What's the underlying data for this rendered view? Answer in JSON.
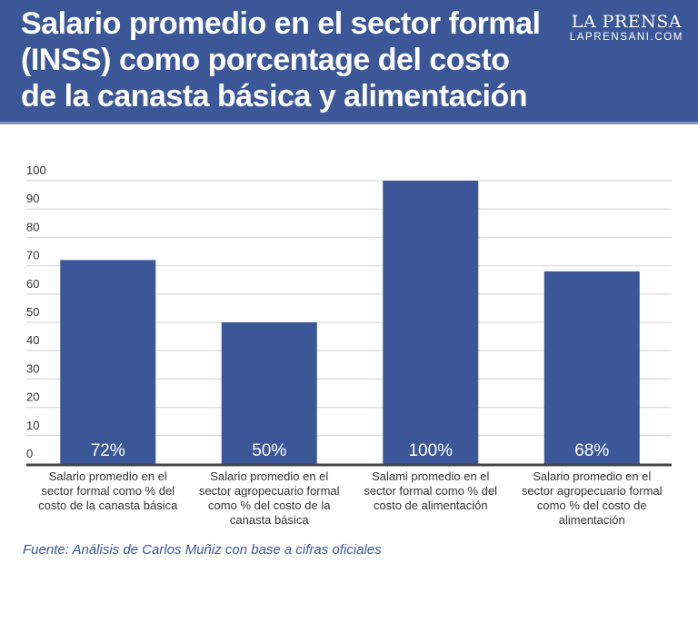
{
  "header": {
    "title_lines": [
      "Salario promedio en el sector formal",
      "(INSS) como porcentage del costo",
      "de la canasta básica y alimentación"
    ],
    "brand_name": "LA PRENSA",
    "brand_url": "LAPRENSANI.COM"
  },
  "colors": {
    "header_bg": "#3b5798",
    "bar": "#3b5798",
    "source_text": "#3b5798",
    "gridline": "#e0e0e0",
    "axis": "#444444"
  },
  "chart_data": {
    "type": "bar",
    "title": "Salario promedio en el sector formal (INSS) como porcentage del costo de la canasta básica y alimentación",
    "xlabel": "",
    "ylabel": "",
    "ylim": [
      0,
      100
    ],
    "yticks": [
      0,
      10,
      20,
      30,
      40,
      50,
      60,
      70,
      80,
      90,
      100
    ],
    "grid": true,
    "legend": "none",
    "categories": [
      "Salario promedio en el sector formal como % del costo de la canasta básica",
      "Salario promedio en el sector agropecuario formal como % del costo de la canasta básica",
      "Salami promedio en el sector formal como % del costo de alimentación",
      "Salario promedio en el sector agropecuario formal como % del costo de alimentación"
    ],
    "category_label_lines": [
      [
        "Salario promedio en el",
        "sector formal como % del",
        "costo de la canasta básica"
      ],
      [
        "Salario promedio en el",
        "sector agropecuario formal",
        "como % del costo de la",
        "canasta básica"
      ],
      [
        "Salami promedio en el",
        "sector formal como % del",
        "costo de alimentación"
      ],
      [
        "Salario promedio en el",
        "sector agropecuario formal",
        "como % del costo de",
        "alimentación"
      ]
    ],
    "values": [
      72,
      50,
      100,
      68
    ],
    "data_labels": [
      "72%",
      "50%",
      "100%",
      "68%"
    ]
  },
  "footer": {
    "source": "Fuente: Análisis de Carlos Muñiz con base a cifras oficiales"
  }
}
